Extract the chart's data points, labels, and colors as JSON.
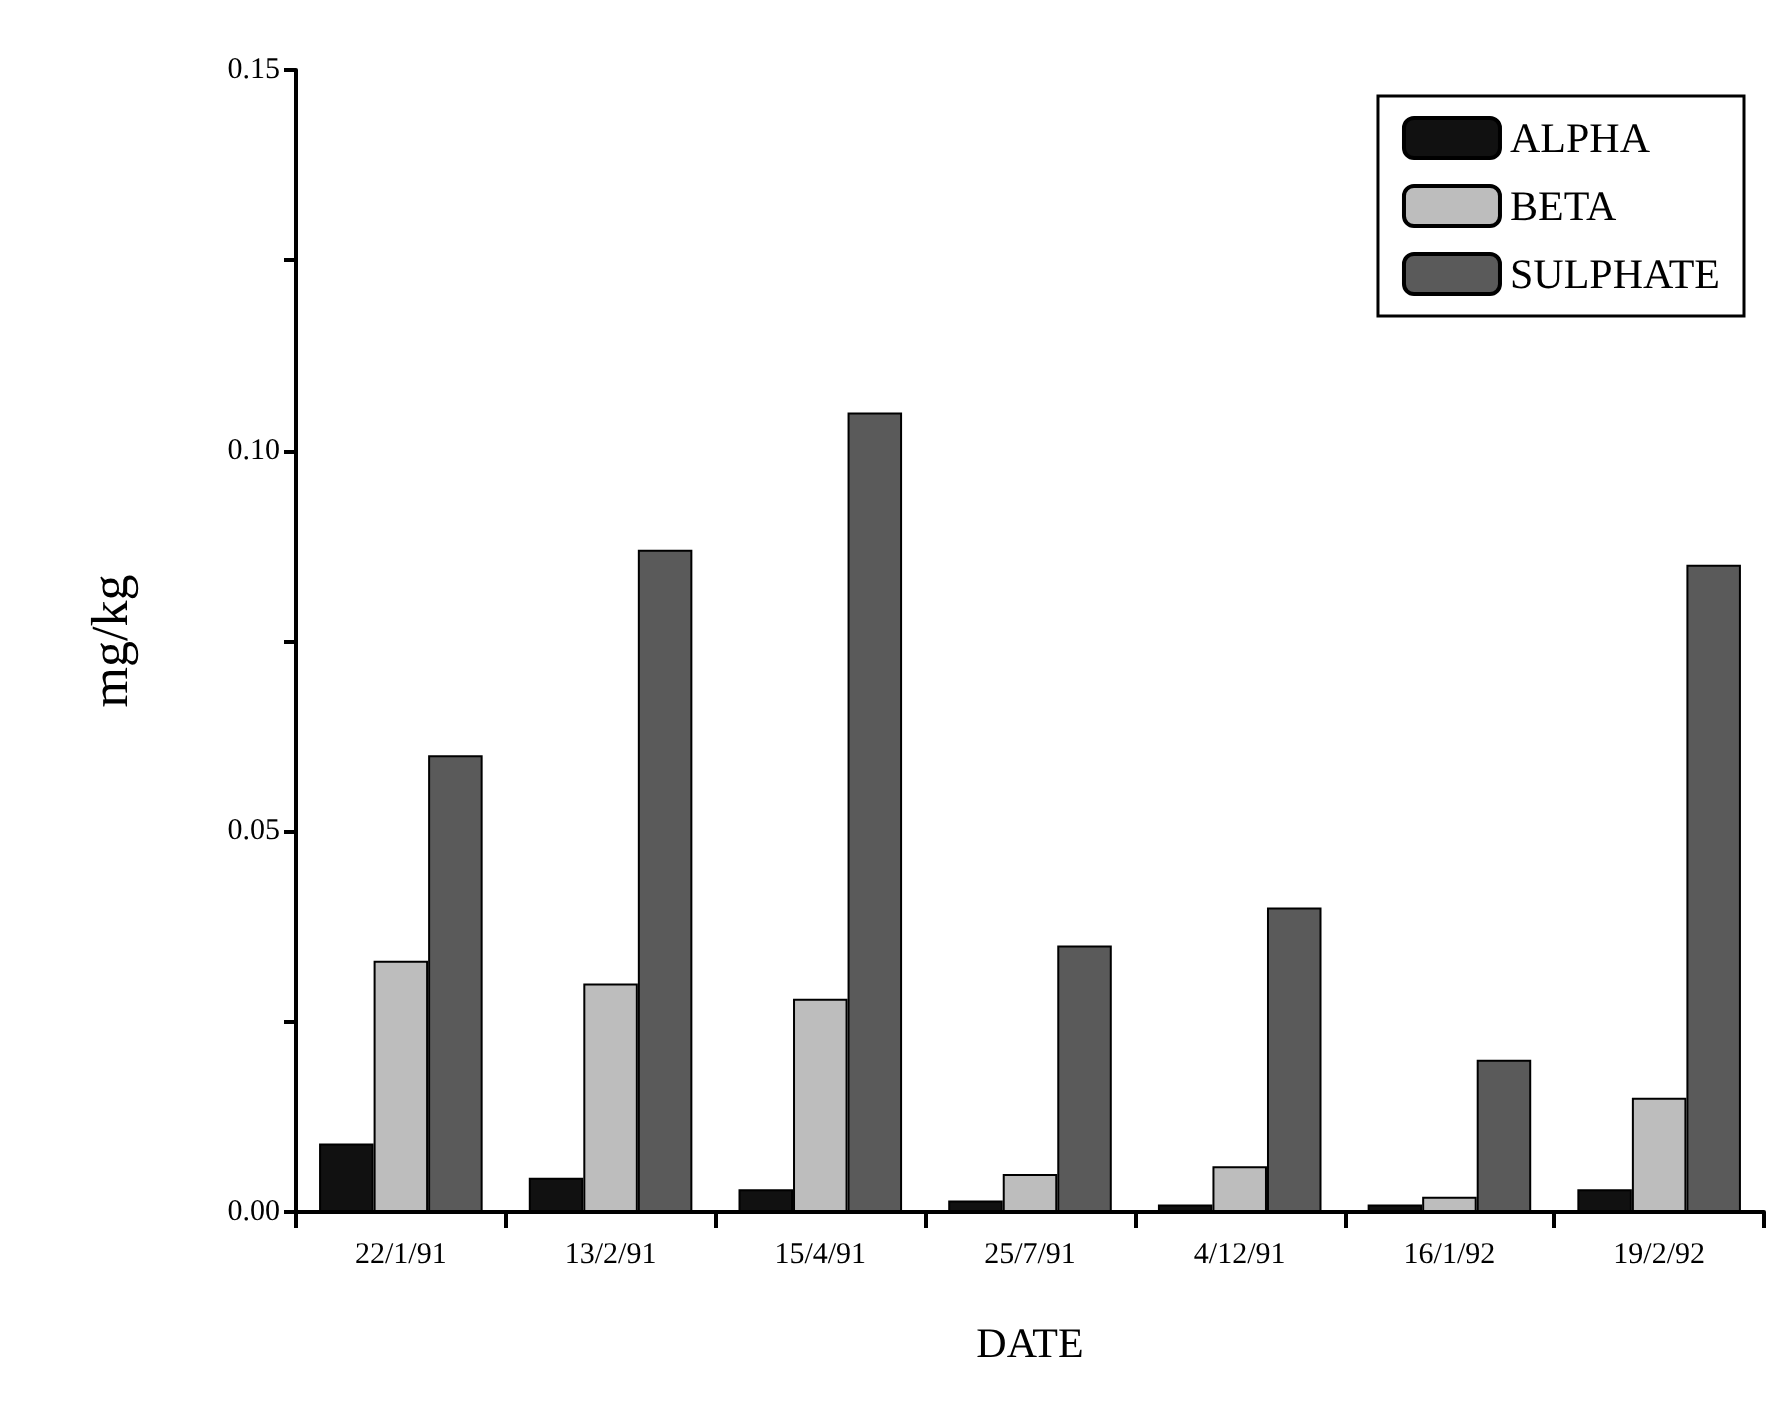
{
  "chart_data": {
    "type": "bar",
    "xlabel": "DATE",
    "ylabel": "mg/kg",
    "categories": [
      "22/1/91",
      "13/2/91",
      "15/4/91",
      "25/7/91",
      "4/12/91",
      "16/1/92",
      "19/2/92"
    ],
    "series": [
      {
        "name": "ALPHA",
        "color": "#111111",
        "values": [
          0.009,
          0.0045,
          0.003,
          0.0015,
          0.001,
          0.001,
          0.003
        ]
      },
      {
        "name": "BETA",
        "color": "#bdbdbd",
        "values": [
          0.033,
          0.03,
          0.028,
          0.005,
          0.006,
          0.002,
          0.015
        ]
      },
      {
        "name": "SULPHATE",
        "color": "#5a5a5a",
        "values": [
          0.06,
          0.087,
          0.105,
          0.035,
          0.04,
          0.02,
          0.085
        ]
      }
    ],
    "ylim": [
      0,
      0.15
    ],
    "yticks": [
      {
        "value": 0,
        "label": "0.00"
      },
      {
        "value": 0.025,
        "label": null
      },
      {
        "value": 0.05,
        "label": "0.05"
      },
      {
        "value": 0.075,
        "label": null
      },
      {
        "value": 0.1,
        "label": "0.10"
      },
      {
        "value": 0.125,
        "label": null
      },
      {
        "value": 0.15,
        "label": "0.15"
      }
    ],
    "grid": false,
    "legend": "top right"
  }
}
